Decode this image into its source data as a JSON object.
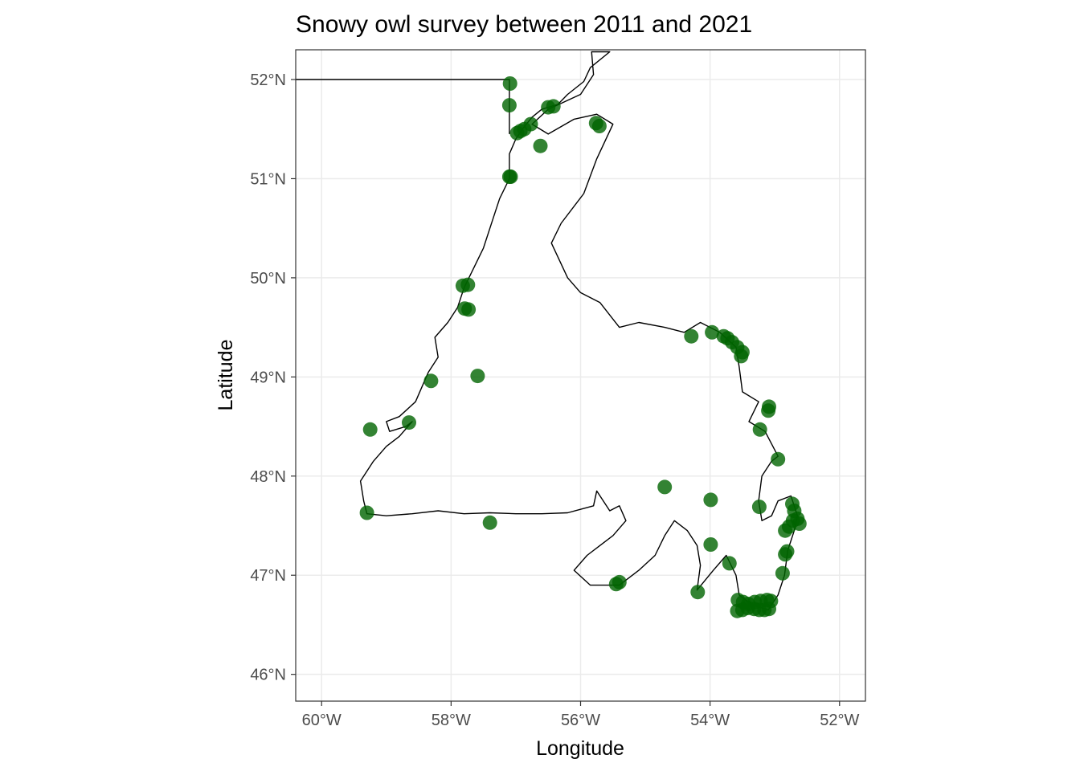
{
  "chart_data": {
    "type": "scatter",
    "map_region": "Newfoundland",
    "title": "Snowy owl survey between 2011 and 2021",
    "xlabel": "Longitude",
    "ylabel": "Latitude",
    "xlim": [
      -60.4,
      -51.6
    ],
    "ylim": [
      45.73,
      52.3
    ],
    "x_ticks": [
      -60,
      -58,
      -56,
      -54,
      -52
    ],
    "y_ticks": [
      46,
      47,
      48,
      49,
      50,
      51,
      52
    ],
    "x_tick_labels": [
      "60°W",
      "58°W",
      "56°W",
      "54°W",
      "52°W"
    ],
    "y_tick_labels": [
      "46°N",
      "47°N",
      "48°N",
      "49°N",
      "50°N",
      "51°N",
      "52°N"
    ],
    "grid": true,
    "point_color": "#006400",
    "points": [
      {
        "lon": -57.09,
        "lat": 51.96
      },
      {
        "lon": -57.1,
        "lat": 51.74
      },
      {
        "lon": -56.5,
        "lat": 51.72
      },
      {
        "lon": -56.42,
        "lat": 51.73
      },
      {
        "lon": -56.77,
        "lat": 51.55
      },
      {
        "lon": -56.87,
        "lat": 51.5
      },
      {
        "lon": -56.93,
        "lat": 51.48
      },
      {
        "lon": -56.98,
        "lat": 51.46
      },
      {
        "lon": -56.62,
        "lat": 51.33
      },
      {
        "lon": -55.76,
        "lat": 51.56
      },
      {
        "lon": -55.71,
        "lat": 51.53
      },
      {
        "lon": -57.08,
        "lat": 51.02
      },
      {
        "lon": -57.1,
        "lat": 51.02
      },
      {
        "lon": -57.82,
        "lat": 49.92
      },
      {
        "lon": -57.74,
        "lat": 49.93
      },
      {
        "lon": -57.79,
        "lat": 49.69
      },
      {
        "lon": -57.73,
        "lat": 49.68
      },
      {
        "lon": -57.59,
        "lat": 49.01
      },
      {
        "lon": -58.31,
        "lat": 48.96
      },
      {
        "lon": -58.65,
        "lat": 48.54
      },
      {
        "lon": -59.25,
        "lat": 48.47
      },
      {
        "lon": -59.3,
        "lat": 47.63
      },
      {
        "lon": -57.4,
        "lat": 47.53
      },
      {
        "lon": -54.29,
        "lat": 49.41
      },
      {
        "lon": -53.97,
        "lat": 49.45
      },
      {
        "lon": -53.79,
        "lat": 49.41
      },
      {
        "lon": -53.73,
        "lat": 49.39
      },
      {
        "lon": -53.66,
        "lat": 49.35
      },
      {
        "lon": -53.58,
        "lat": 49.3
      },
      {
        "lon": -53.5,
        "lat": 49.25
      },
      {
        "lon": -53.52,
        "lat": 49.21
      },
      {
        "lon": -53.09,
        "lat": 48.7
      },
      {
        "lon": -53.1,
        "lat": 48.66
      },
      {
        "lon": -53.23,
        "lat": 48.47
      },
      {
        "lon": -52.95,
        "lat": 48.17
      },
      {
        "lon": -54.7,
        "lat": 47.89
      },
      {
        "lon": -53.99,
        "lat": 47.76
      },
      {
        "lon": -53.24,
        "lat": 47.69
      },
      {
        "lon": -52.73,
        "lat": 47.72
      },
      {
        "lon": -52.7,
        "lat": 47.65
      },
      {
        "lon": -52.65,
        "lat": 47.57
      },
      {
        "lon": -52.62,
        "lat": 47.52
      },
      {
        "lon": -52.72,
        "lat": 47.55
      },
      {
        "lon": -52.78,
        "lat": 47.49
      },
      {
        "lon": -52.84,
        "lat": 47.45
      },
      {
        "lon": -52.81,
        "lat": 47.24
      },
      {
        "lon": -52.84,
        "lat": 47.21
      },
      {
        "lon": -52.88,
        "lat": 47.02
      },
      {
        "lon": -53.99,
        "lat": 47.31
      },
      {
        "lon": -53.7,
        "lat": 47.12
      },
      {
        "lon": -55.4,
        "lat": 46.93
      },
      {
        "lon": -55.45,
        "lat": 46.91
      },
      {
        "lon": -54.19,
        "lat": 46.83
      },
      {
        "lon": -53.57,
        "lat": 46.75
      },
      {
        "lon": -53.49,
        "lat": 46.73
      },
      {
        "lon": -53.41,
        "lat": 46.71
      },
      {
        "lon": -53.31,
        "lat": 46.73
      },
      {
        "lon": -53.22,
        "lat": 46.74
      },
      {
        "lon": -53.12,
        "lat": 46.75
      },
      {
        "lon": -53.06,
        "lat": 46.74
      },
      {
        "lon": -53.58,
        "lat": 46.64
      },
      {
        "lon": -53.5,
        "lat": 46.65
      },
      {
        "lon": -53.42,
        "lat": 46.67
      },
      {
        "lon": -53.32,
        "lat": 46.66
      },
      {
        "lon": -53.24,
        "lat": 46.65
      },
      {
        "lon": -53.16,
        "lat": 46.65
      },
      {
        "lon": -53.09,
        "lat": 46.66
      }
    ],
    "outline": [
      [
        -55.83,
        52.28
      ],
      [
        -55.55,
        52.28
      ],
      [
        -55.85,
        52.12
      ],
      [
        -55.95,
        51.98
      ],
      [
        -56.2,
        51.85
      ],
      [
        -56.35,
        51.75
      ],
      [
        -56.6,
        51.7
      ],
      [
        -56.75,
        51.62
      ],
      [
        -56.9,
        51.5
      ],
      [
        -57.0,
        51.4
      ],
      [
        -57.1,
        51.25
      ],
      [
        -57.1,
        51.0
      ],
      [
        -57.25,
        50.8
      ],
      [
        -57.35,
        50.6
      ],
      [
        -57.5,
        50.3
      ],
      [
        -57.65,
        50.1
      ],
      [
        -57.8,
        49.9
      ],
      [
        -57.9,
        49.7
      ],
      [
        -58.05,
        49.55
      ],
      [
        -58.25,
        49.4
      ],
      [
        -58.2,
        49.2
      ],
      [
        -58.35,
        49.05
      ],
      [
        -58.45,
        48.9
      ],
      [
        -58.55,
        48.75
      ],
      [
        -58.8,
        48.6
      ],
      [
        -59.0,
        48.55
      ],
      [
        -58.95,
        48.45
      ],
      [
        -58.7,
        48.5
      ],
      [
        -58.6,
        48.55
      ],
      [
        -58.8,
        48.4
      ],
      [
        -59.0,
        48.3
      ],
      [
        -59.2,
        48.15
      ],
      [
        -59.4,
        47.95
      ],
      [
        -59.35,
        47.75
      ],
      [
        -59.3,
        47.62
      ],
      [
        -59.0,
        47.6
      ],
      [
        -58.6,
        47.62
      ],
      [
        -58.2,
        47.65
      ],
      [
        -57.8,
        47.62
      ],
      [
        -57.4,
        47.63
      ],
      [
        -57.0,
        47.62
      ],
      [
        -56.6,
        47.62
      ],
      [
        -56.2,
        47.63
      ],
      [
        -55.8,
        47.7
      ],
      [
        -55.75,
        47.85
      ],
      [
        -55.55,
        47.65
      ],
      [
        -55.4,
        47.7
      ],
      [
        -55.3,
        47.55
      ],
      [
        -55.5,
        47.4
      ],
      [
        -55.7,
        47.3
      ],
      [
        -55.9,
        47.2
      ],
      [
        -56.1,
        47.05
      ],
      [
        -55.85,
        46.9
      ],
      [
        -55.4,
        46.9
      ],
      [
        -55.1,
        47.05
      ],
      [
        -54.85,
        47.2
      ],
      [
        -54.7,
        47.4
      ],
      [
        -54.55,
        47.55
      ],
      [
        -54.35,
        47.45
      ],
      [
        -54.2,
        47.3
      ],
      [
        -54.15,
        47.1
      ],
      [
        -54.2,
        46.85
      ],
      [
        -53.95,
        47.05
      ],
      [
        -53.75,
        47.2
      ],
      [
        -53.6,
        47.0
      ],
      [
        -53.55,
        46.8
      ],
      [
        -53.35,
        46.7
      ],
      [
        -53.1,
        46.65
      ],
      [
        -52.95,
        46.8
      ],
      [
        -52.85,
        47.0
      ],
      [
        -52.8,
        47.25
      ],
      [
        -52.7,
        47.45
      ],
      [
        -52.65,
        47.6
      ],
      [
        -52.75,
        47.8
      ],
      [
        -52.95,
        47.75
      ],
      [
        -53.05,
        47.6
      ],
      [
        -53.2,
        47.55
      ],
      [
        -53.25,
        47.75
      ],
      [
        -53.2,
        48.0
      ],
      [
        -53.05,
        48.15
      ],
      [
        -52.95,
        48.2
      ],
      [
        -53.15,
        48.45
      ],
      [
        -53.4,
        48.55
      ],
      [
        -53.25,
        48.75
      ],
      [
        -53.5,
        48.85
      ],
      [
        -53.55,
        49.1
      ],
      [
        -53.6,
        49.3
      ],
      [
        -53.85,
        49.45
      ],
      [
        -54.15,
        49.55
      ],
      [
        -54.4,
        49.45
      ],
      [
        -54.7,
        49.5
      ],
      [
        -55.1,
        49.55
      ],
      [
        -55.4,
        49.5
      ],
      [
        -55.7,
        49.75
      ],
      [
        -56.0,
        49.85
      ],
      [
        -56.2,
        50.0
      ],
      [
        -56.45,
        50.35
      ],
      [
        -56.3,
        50.55
      ],
      [
        -55.95,
        50.85
      ],
      [
        -55.75,
        51.2
      ],
      [
        -55.5,
        51.55
      ],
      [
        -55.75,
        51.65
      ],
      [
        -56.1,
        51.6
      ],
      [
        -56.5,
        51.45
      ],
      [
        -56.75,
        51.55
      ],
      [
        -56.5,
        51.7
      ],
      [
        -56.0,
        51.85
      ],
      [
        -55.8,
        52.05
      ],
      [
        -55.83,
        52.28
      ]
    ],
    "border": [
      [
        -60.4,
        52.0
      ],
      [
        -57.1,
        52.0
      ],
      [
        -57.1,
        51.45
      ]
    ]
  }
}
